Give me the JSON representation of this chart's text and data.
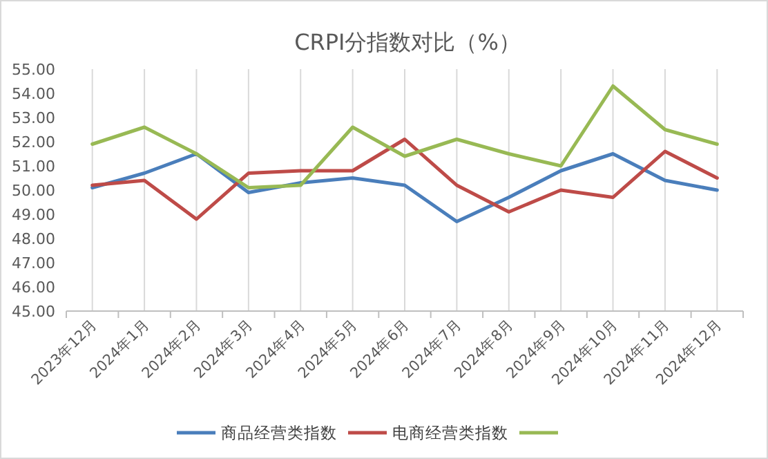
{
  "chart_data": {
    "type": "line",
    "title": "CRPI分指数对比（%）",
    "categories": [
      "2023年12月",
      "2024年1月",
      "2024年2月",
      "2024年3月",
      "2024年4月",
      "2024年5月",
      "2024年6月",
      "2024年7月",
      "2024年8月",
      "2024年9月",
      "2024年10月",
      "2024年11月",
      "2024年12月"
    ],
    "series": [
      {
        "name": "商品经营类指数",
        "color": "#4a7ebb",
        "values": [
          50.1,
          50.7,
          51.5,
          49.9,
          50.3,
          50.5,
          50.2,
          48.7,
          49.7,
          50.8,
          51.5,
          50.4,
          50.0
        ]
      },
      {
        "name": "电商经营类指数",
        "color": "#be4b48",
        "values": [
          50.2,
          50.4,
          48.8,
          50.7,
          50.8,
          50.8,
          52.1,
          50.2,
          49.1,
          50.0,
          49.7,
          51.6,
          50.5
        ]
      },
      {
        "color": "#98b954",
        "values": [
          51.9,
          52.6,
          51.5,
          50.1,
          50.2,
          52.6,
          51.4,
          52.1,
          51.5,
          51.0,
          54.3,
          52.5,
          51.9
        ]
      }
    ],
    "ylim": [
      45,
      55
    ],
    "yticks": [
      {
        "value": 45,
        "label": "45.00"
      },
      {
        "value": 46,
        "label": "46.00"
      },
      {
        "value": 47,
        "label": "47.00"
      },
      {
        "value": 48,
        "label": "48.00"
      },
      {
        "value": 49,
        "label": "49.00"
      },
      {
        "value": 50,
        "label": "50.00"
      },
      {
        "value": 51,
        "label": "51.00"
      },
      {
        "value": 52,
        "label": "52.00"
      },
      {
        "value": 53,
        "label": "53.00"
      },
      {
        "value": 54,
        "label": "54.00"
      },
      {
        "value": 55,
        "label": "55.00"
      }
    ],
    "grid": "x",
    "legend": "bottom",
    "marker": "none",
    "line_style": "solid"
  }
}
